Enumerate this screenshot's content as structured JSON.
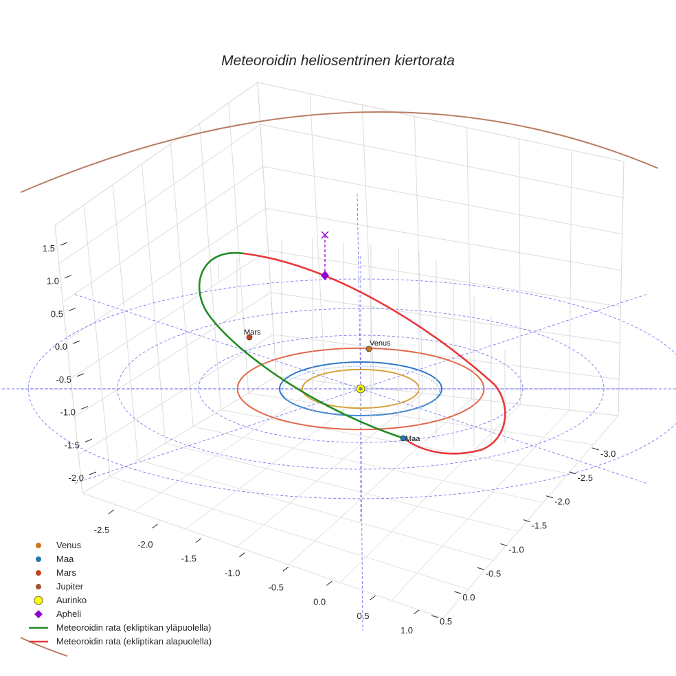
{
  "chart_data": {
    "type": "line",
    "projection": "3d",
    "title": "Meteoroidin heliosentrinen kiertorata",
    "x_axis": {
      "ticks": [
        "-2.5",
        "-2.0",
        "-1.5",
        "-1.0",
        "-0.5",
        "0.0",
        "0.5",
        "1.0"
      ],
      "range": [
        -2.9,
        1.2
      ]
    },
    "y_axis": {
      "ticks": [
        "-3.0",
        "-2.5",
        "-2.0",
        "-1.5",
        "-1.0",
        "-0.5",
        "0.0",
        "0.5"
      ],
      "range": [
        -3.2,
        0.7
      ]
    },
    "z_axis": {
      "ticks": [
        "1.5",
        "1.0",
        "0.5",
        "0.0",
        "-0.5",
        "-1.0",
        "-1.5",
        "-2.0"
      ],
      "range": [
        -2.0,
        1.7
      ]
    },
    "planets": [
      {
        "name": "Venus",
        "radius_au": 0.72,
        "color": "#d6a03a",
        "marker_color": "#c9771e",
        "label": "Venus"
      },
      {
        "name": "Maa",
        "radius_au": 1.0,
        "color": "#2f77c8",
        "marker_color": "#1f77b4",
        "label": "Maa"
      },
      {
        "name": "Mars",
        "radius_au": 1.52,
        "color": "#e2684a",
        "marker_color": "#c8431f",
        "label": "Mars"
      },
      {
        "name": "Jupiter",
        "radius_au": 5.2,
        "color": "#b97d62",
        "marker_color": "#a0522d"
      }
    ],
    "sun": {
      "name": "Aurinko",
      "x": 0,
      "y": 0,
      "z": 0,
      "color": "#ffff00"
    },
    "aphelion": {
      "name": "Apheli",
      "z_above_ecliptic": 0.95,
      "color": "#9400d3"
    },
    "meteoroid_orbit": {
      "series": [
        {
          "name": "Meteoroidin rata (ekliptikan yläpuolella)",
          "color": "#228b22"
        },
        {
          "name": "Meteoroidin rata (ekliptikan alapuolella)",
          "color": "#e8383a"
        }
      ]
    },
    "grid_guides": {
      "radii_au": [
        2,
        3
      ],
      "color": "#5555ee",
      "style": "dashed"
    },
    "legend": {
      "position": "bottom-left",
      "entries": [
        {
          "label": "Venus",
          "marker": "dot",
          "color": "#c9771e"
        },
        {
          "label": "Maa",
          "marker": "dot",
          "color": "#1f77b4"
        },
        {
          "label": "Mars",
          "marker": "dot",
          "color": "#c8431f"
        },
        {
          "label": "Jupiter",
          "marker": "dot",
          "color": "#a0522d"
        },
        {
          "label": "Aurinko",
          "marker": "bigdot",
          "color": "#ffff00"
        },
        {
          "label": "Apheli",
          "marker": "diamond",
          "color": "#9400d3"
        },
        {
          "label": "Meteoroidin rata (ekliptikan yläpuolella)",
          "marker": "line",
          "color": "#228b22"
        },
        {
          "label": "Meteoroidin rata (ekliptikan alapuolella)",
          "marker": "line",
          "color": "#e8383a"
        }
      ]
    }
  }
}
